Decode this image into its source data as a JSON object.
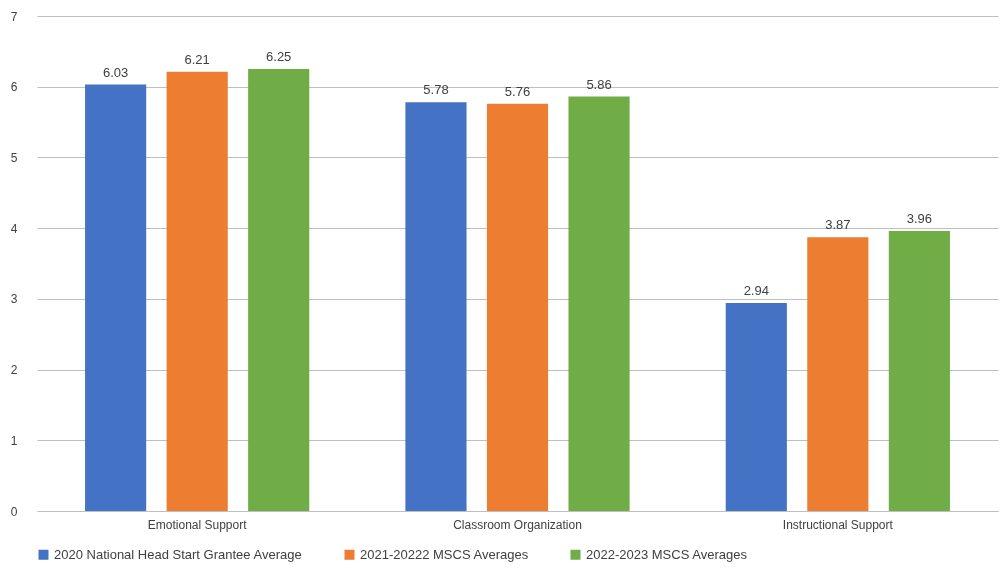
{
  "chart_data": {
    "type": "bar",
    "categories": [
      "Emotional Support",
      "Classroom Organization",
      "Instructional Support"
    ],
    "series": [
      {
        "name": "2020 National Head Start Grantee Average",
        "color": "#4472c4",
        "values": [
          6.03,
          5.78,
          2.94
        ]
      },
      {
        "name": "2021-20222 MSCS Averages",
        "color": "#ed7d31",
        "values": [
          6.21,
          5.76,
          3.87
        ]
      },
      {
        "name": "2022-2023 MSCS Averages",
        "color": "#70ad47",
        "values": [
          6.25,
          5.86,
          3.96
        ]
      }
    ],
    "ylim": [
      0,
      7
    ],
    "yticks": [
      0,
      1,
      2,
      3,
      4,
      5,
      6,
      7
    ],
    "grid": "y",
    "legend": "bottom",
    "data_labels": true
  }
}
